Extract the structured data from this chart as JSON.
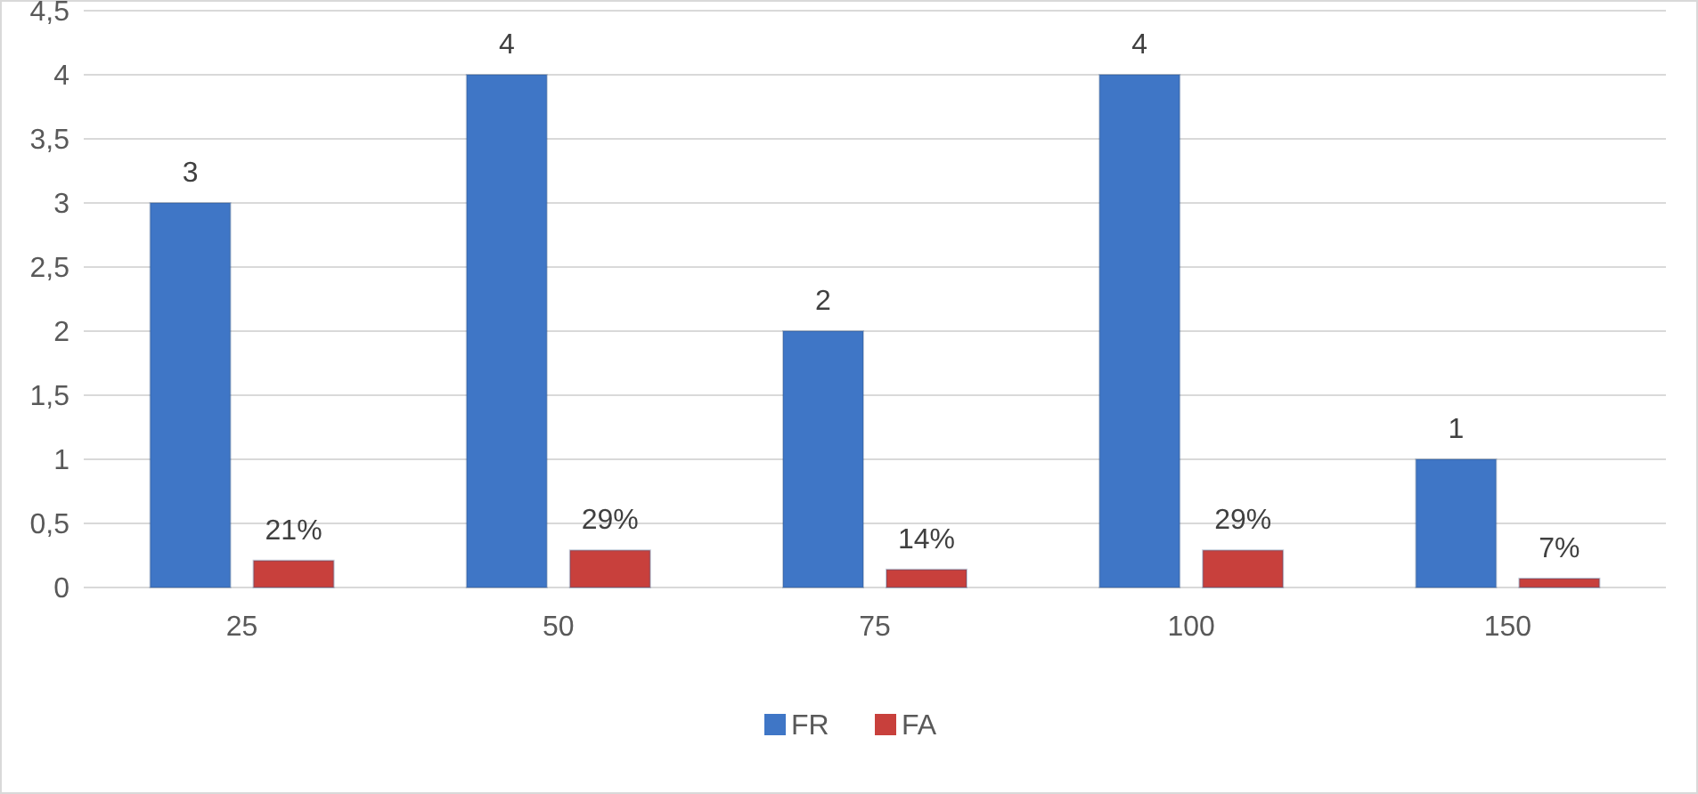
{
  "chart_data": {
    "type": "bar",
    "categories": [
      "25",
      "50",
      "75",
      "100",
      "150"
    ],
    "series": [
      {
        "name": "FR",
        "color": "#3f76c6",
        "values": [
          3,
          4,
          2,
          4,
          1
        ],
        "value_labels": [
          "3",
          "4",
          "2",
          "4",
          "1"
        ]
      },
      {
        "name": "FA",
        "color": "#c8403c",
        "values": [
          0.21,
          0.29,
          0.14,
          0.29,
          0.07
        ],
        "value_labels": [
          "21%",
          "29%",
          "14%",
          "29%",
          "7%"
        ]
      }
    ],
    "ylim": [
      0,
      4.5
    ],
    "yticks": [
      {
        "value": 0,
        "label": "0"
      },
      {
        "value": 0.5,
        "label": "0,5"
      },
      {
        "value": 1,
        "label": "1"
      },
      {
        "value": 1.5,
        "label": "1,5"
      },
      {
        "value": 2,
        "label": "2"
      },
      {
        "value": 2.5,
        "label": "2,5"
      },
      {
        "value": 3,
        "label": "3"
      },
      {
        "value": 3.5,
        "label": "3,5"
      },
      {
        "value": 4,
        "label": "4"
      },
      {
        "value": 4.5,
        "label": "4,5"
      }
    ],
    "grid": "y",
    "legend": "bottom"
  }
}
